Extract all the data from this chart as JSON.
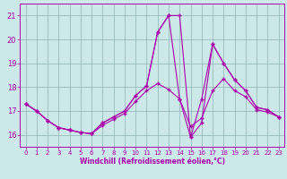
{
  "bg_color": "#cce8e8",
  "line_color": "#aa00aa",
  "grid_color": "#99bbbb",
  "xlabel": "Windchill (Refroidissement éolien,°C)",
  "xlabel_color": "#aa00aa",
  "tick_color": "#aa00aa",
  "x_ticks": [
    0,
    1,
    2,
    3,
    4,
    5,
    6,
    7,
    8,
    9,
    10,
    11,
    12,
    13,
    14,
    15,
    16,
    17,
    18,
    19,
    20,
    21,
    22,
    23
  ],
  "ylim": [
    15.5,
    21.5
  ],
  "xlim": [
    -0.5,
    23.5
  ],
  "yticks": [
    16,
    17,
    18,
    19,
    20,
    21
  ],
  "series_mean": [
    17.3,
    17.0,
    16.6,
    16.3,
    16.2,
    16.1,
    16.05,
    16.4,
    16.65,
    16.9,
    17.4,
    17.85,
    18.15,
    17.9,
    17.5,
    16.35,
    16.7,
    17.85,
    18.35,
    17.85,
    17.6,
    17.05,
    16.95,
    16.75
  ],
  "series_max": [
    17.3,
    17.0,
    16.6,
    16.3,
    16.2,
    16.1,
    16.05,
    16.5,
    16.75,
    17.0,
    17.65,
    18.05,
    20.3,
    21.0,
    17.5,
    15.9,
    16.5,
    19.8,
    19.0,
    18.3,
    17.85,
    17.15,
    17.05,
    16.75
  ],
  "series_min": [
    17.3,
    17.0,
    16.6,
    16.3,
    16.2,
    16.1,
    16.05,
    16.5,
    16.75,
    17.0,
    17.65,
    18.05,
    20.3,
    21.0,
    21.0,
    15.9,
    17.5,
    19.8,
    19.0,
    18.3,
    17.85,
    17.15,
    17.05,
    16.75
  ]
}
